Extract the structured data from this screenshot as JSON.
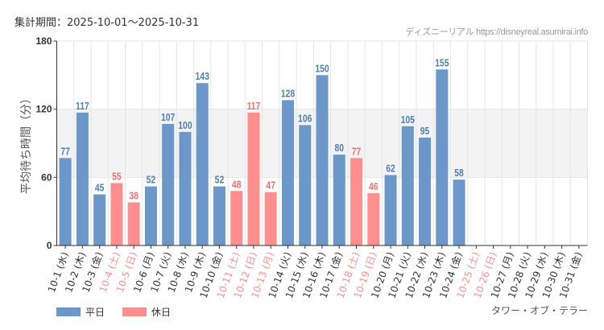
{
  "header": {
    "period": "集計期間：2025-10-01～2025-10-31",
    "credit": "ディズニーリアル https://disneyreal.asumirai.info"
  },
  "attraction": "タワー・オブ・テラー",
  "colors": {
    "weekday": "#6b98c8",
    "holiday": "#ff8f8f",
    "weekday_label": "#4f7fb5",
    "holiday_label": "#f07070",
    "band": "#f3f3f3"
  },
  "chart_data": {
    "type": "bar",
    "ylabel": "平均待ち時間（分）",
    "ylim": [
      0,
      180
    ],
    "yticks": [
      0,
      60,
      120,
      180
    ],
    "shaded_band": [
      60,
      120
    ],
    "legend": [
      {
        "name": "平日",
        "key": "weekday"
      },
      {
        "name": "休日",
        "key": "holiday"
      }
    ],
    "legend_placement": "bottom-left",
    "categories": [
      "10-1 (水)",
      "10-2 (木)",
      "10-3 (金)",
      "10-4 (土)",
      "10-5 (日)",
      "10-6 (月)",
      "10-7 (火)",
      "10-8 (水)",
      "10-9 (木)",
      "10-10 (金)",
      "10-11 (土)",
      "10-12 (日)",
      "10-13 (月)",
      "10-14 (火)",
      "10-15 (水)",
      "10-16 (木)",
      "10-17 (金)",
      "10-18 (土)",
      "10-19 (日)",
      "10-20 (月)",
      "10-21 (火)",
      "10-22 (水)",
      "10-23 (木)",
      "10-24 (金)",
      "10-25 (土)",
      "10-26 (日)",
      "10-27 (月)",
      "10-28 (火)",
      "10-29 (水)",
      "10-30 (木)",
      "10-31 (金)"
    ],
    "holiday": [
      false,
      false,
      false,
      true,
      true,
      false,
      false,
      false,
      false,
      false,
      true,
      true,
      true,
      false,
      false,
      false,
      false,
      true,
      true,
      false,
      false,
      false,
      false,
      false,
      true,
      true,
      false,
      false,
      false,
      false,
      false
    ],
    "values": [
      77,
      117,
      45,
      55,
      38,
      52,
      107,
      100,
      143,
      52,
      48,
      117,
      47,
      128,
      106,
      150,
      80,
      77,
      46,
      62,
      105,
      95,
      155,
      58,
      null,
      null,
      null,
      null,
      null,
      null,
      null
    ]
  }
}
